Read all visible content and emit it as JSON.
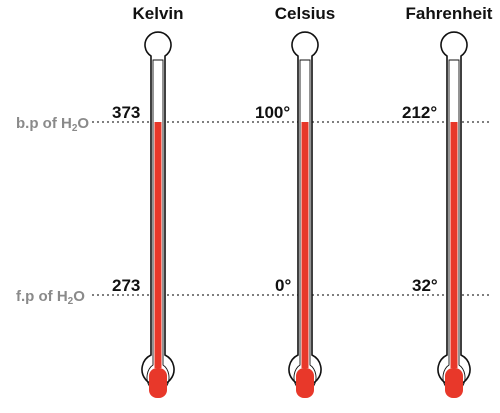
{
  "reference_lines": [
    {
      "label_main": "b.p of H",
      "label_sub": "2",
      "label_end": "O"
    },
    {
      "label_main": "f.p of H",
      "label_sub": "2",
      "label_end": "O"
    }
  ],
  "thermometers": [
    {
      "title": "Kelvin",
      "boiling": "373",
      "freezing": "273"
    },
    {
      "title": "Celsius",
      "boiling": "100°",
      "freezing": "0°"
    },
    {
      "title": "Fahrenheit",
      "boiling": "212°",
      "freezing": "32°"
    }
  ],
  "colors": {
    "mercury": "#e8382a",
    "outline": "#111111",
    "dotted_line": "#555555",
    "reference_label": "#8a8a8a"
  }
}
